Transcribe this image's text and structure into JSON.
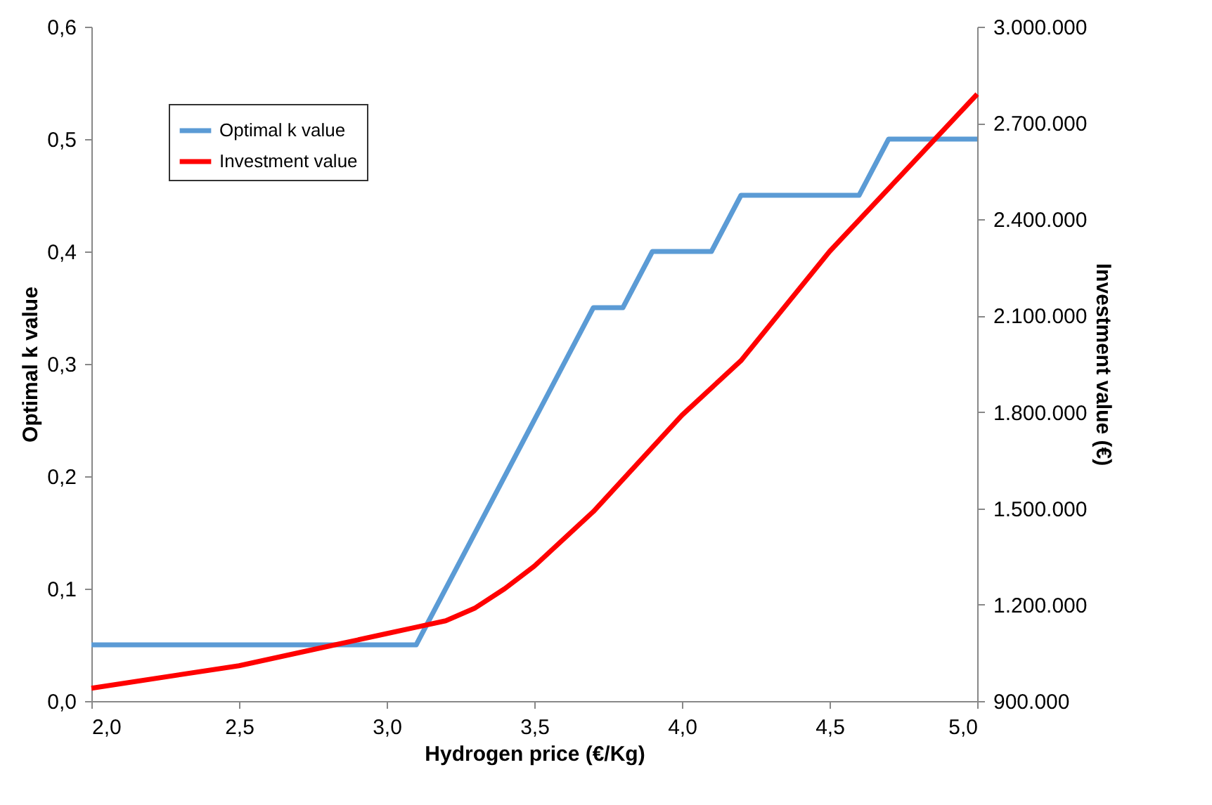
{
  "chart_data": {
    "type": "line",
    "xlabel": "Hydrogen price (€/Kg)",
    "ylabel": "Optimal k value",
    "y2label": "Investment value (€)",
    "xlim": [
      2.0,
      5.0
    ],
    "xticks": [
      {
        "value": 2.0,
        "label": "2,0"
      },
      {
        "value": 2.5,
        "label": "2,5"
      },
      {
        "value": 3.0,
        "label": "3,0"
      },
      {
        "value": 3.5,
        "label": "3,5"
      },
      {
        "value": 4.0,
        "label": "4,0"
      },
      {
        "value": 4.5,
        "label": "4,5"
      },
      {
        "value": 5.0,
        "label": "5,0"
      }
    ],
    "ylim": [
      0,
      0.6
    ],
    "yticks": [
      {
        "value": 0,
        "label": "0,0"
      },
      {
        "value": 0.1,
        "label": "0,1"
      },
      {
        "value": 0.2,
        "label": "0,2"
      },
      {
        "value": 0.3,
        "label": "0,3"
      },
      {
        "value": 0.4,
        "label": "0,4"
      },
      {
        "value": 0.5,
        "label": "0,5"
      },
      {
        "value": 0.6,
        "label": "0,6"
      }
    ],
    "y2lim": [
      900000,
      3000000
    ],
    "y2ticks": [
      {
        "value": 900000,
        "label": "900.000"
      },
      {
        "value": 1200000,
        "label": "1.200.000"
      },
      {
        "value": 1500000,
        "label": "1.500.000"
      },
      {
        "value": 1800000,
        "label": "1.800.000"
      },
      {
        "value": 2100000,
        "label": "2.100.000"
      },
      {
        "value": 2400000,
        "label": "2.400.000"
      },
      {
        "value": 2700000,
        "label": "2.700.000"
      },
      {
        "value": 3000000,
        "label": "3.000.000"
      }
    ],
    "legend": "top left",
    "grid": false,
    "marker": "none",
    "line_style": "solid",
    "series": [
      {
        "name": "Optimal k value",
        "color": "#5b9bd5",
        "x": [
          2.0,
          3.1,
          3.7,
          3.8,
          3.9,
          4.1,
          4.2,
          4.6,
          4.7,
          5.0
        ],
        "values": [
          0.05,
          0.05,
          0.35,
          0.35,
          0.4,
          0.4,
          0.45,
          0.45,
          0.5,
          0.5
        ]
      },
      {
        "name": "Investment value",
        "color": "#ff0000",
        "axis": "y2",
        "x": [
          2.0,
          2.5,
          2.8,
          3.0,
          3.1,
          3.2,
          3.3,
          3.4,
          3.5,
          3.7,
          4.0,
          4.2,
          4.5,
          5.0
        ],
        "values": [
          940000,
          1010000,
          1070000,
          1110000,
          1130000,
          1150000,
          1190000,
          1250000,
          1320000,
          1490000,
          1790000,
          1960000,
          2300000,
          2790000
        ]
      }
    ]
  }
}
